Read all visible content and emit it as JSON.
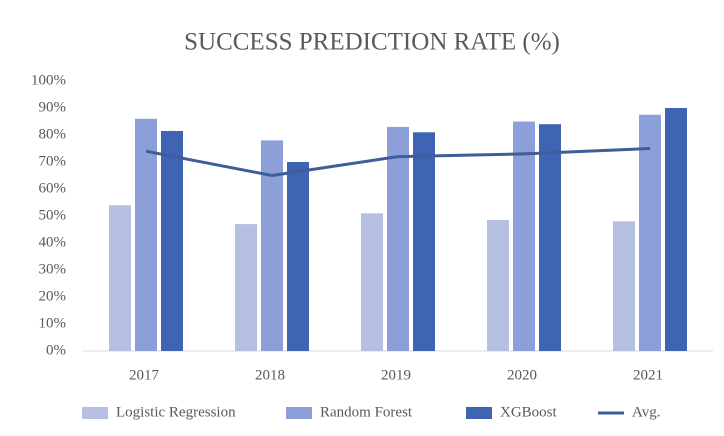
{
  "chart_data": {
    "type": "bar",
    "title": "SUCCESS PREDICTION RATE (%)",
    "categories": [
      "2017",
      "2018",
      "2019",
      "2020",
      "2021"
    ],
    "series": [
      {
        "name": "Logistic Regression",
        "color": "#b4bfe2",
        "values": [
          54,
          47,
          51,
          48.5,
          48
        ]
      },
      {
        "name": "Random Forest",
        "color": "#8c9fd8",
        "values": [
          86,
          78,
          83,
          85,
          87.5
        ]
      },
      {
        "name": "XGBoost",
        "color": "#3f64b4",
        "values": [
          81.5,
          70,
          81,
          84,
          90
        ]
      },
      {
        "name": "Avg.",
        "color": "#3f5d99",
        "type": "line",
        "values": [
          74,
          65,
          72,
          73,
          75
        ]
      }
    ],
    "ylim": [
      0,
      100
    ],
    "yticks": [
      {
        "value": 0,
        "label": "0%"
      },
      {
        "value": 10,
        "label": "10%"
      },
      {
        "value": 20,
        "label": "20%"
      },
      {
        "value": 30,
        "label": "30%"
      },
      {
        "value": 40,
        "label": "40%"
      },
      {
        "value": 50,
        "label": "50%"
      },
      {
        "value": 60,
        "label": "60%"
      },
      {
        "value": 70,
        "label": "70%"
      },
      {
        "value": 80,
        "label": "80%"
      },
      {
        "value": 90,
        "label": "90%"
      },
      {
        "value": 100,
        "label": "100%"
      }
    ],
    "grid": false,
    "legend": "bottom"
  }
}
